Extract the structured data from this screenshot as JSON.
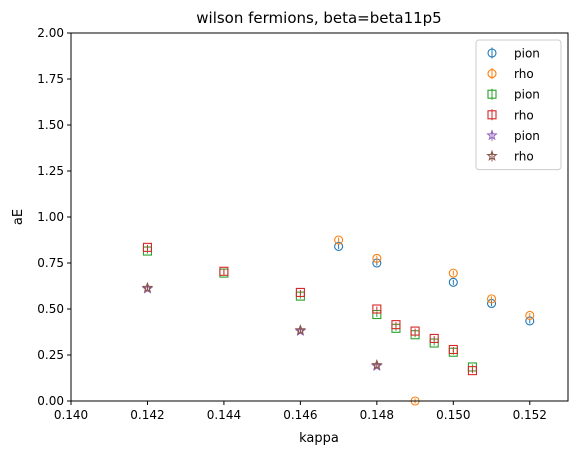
{
  "chart_data": {
    "type": "scatter",
    "title": "wilson fermions, beta=beta11p5",
    "xlabel": "kappa",
    "ylabel": "aE",
    "xlim": [
      0.14,
      0.153
    ],
    "ylim": [
      0.0,
      2.0
    ],
    "xticks": [
      "0.140",
      "0.142",
      "0.144",
      "0.146",
      "0.148",
      "0.150",
      "0.152"
    ],
    "xtick_values": [
      0.14,
      0.142,
      0.144,
      0.146,
      0.148,
      0.15,
      0.152
    ],
    "yticks": [
      "0.00",
      "0.25",
      "0.50",
      "0.75",
      "1.00",
      "1.25",
      "1.50",
      "1.75",
      "2.00"
    ],
    "ytick_values": [
      0.0,
      0.25,
      0.5,
      0.75,
      1.0,
      1.25,
      1.5,
      1.75,
      2.0
    ],
    "legend_position": "top-right",
    "grid": false,
    "series": [
      {
        "name": "pion",
        "marker": "circle",
        "color": "#1f77b4",
        "x": [
          0.147,
          0.148,
          0.15,
          0.151,
          0.152
        ],
        "y": [
          0.84,
          0.75,
          0.645,
          0.53,
          0.435
        ]
      },
      {
        "name": "rho",
        "marker": "circle",
        "color": "#ff7f0e",
        "x": [
          0.147,
          0.148,
          0.149,
          0.15,
          0.151,
          0.152
        ],
        "y": [
          0.875,
          0.775,
          0.0,
          0.695,
          0.555,
          0.465
        ]
      },
      {
        "name": "pion",
        "marker": "square",
        "color": "#2ca02c",
        "x": [
          0.142,
          0.144,
          0.146,
          0.148,
          0.1485,
          0.149,
          0.1495,
          0.15,
          0.1505
        ],
        "y": [
          0.815,
          0.695,
          0.57,
          0.47,
          0.395,
          0.36,
          0.315,
          0.265,
          0.185
        ]
      },
      {
        "name": "rho",
        "marker": "square",
        "color": "#d62728",
        "x": [
          0.142,
          0.144,
          0.146,
          0.148,
          0.1485,
          0.149,
          0.1495,
          0.15,
          0.1505
        ],
        "y": [
          0.835,
          0.705,
          0.59,
          0.5,
          0.415,
          0.38,
          0.34,
          0.28,
          0.165
        ]
      },
      {
        "name": "pion",
        "marker": "star",
        "color": "#9467bd",
        "x": [
          0.142,
          0.146,
          0.148
        ],
        "y": [
          0.61,
          0.38,
          0.19
        ]
      },
      {
        "name": "rho",
        "marker": "star",
        "color": "#8c564b",
        "x": [
          0.142,
          0.146,
          0.148
        ],
        "y": [
          0.615,
          0.385,
          0.195
        ]
      }
    ]
  }
}
